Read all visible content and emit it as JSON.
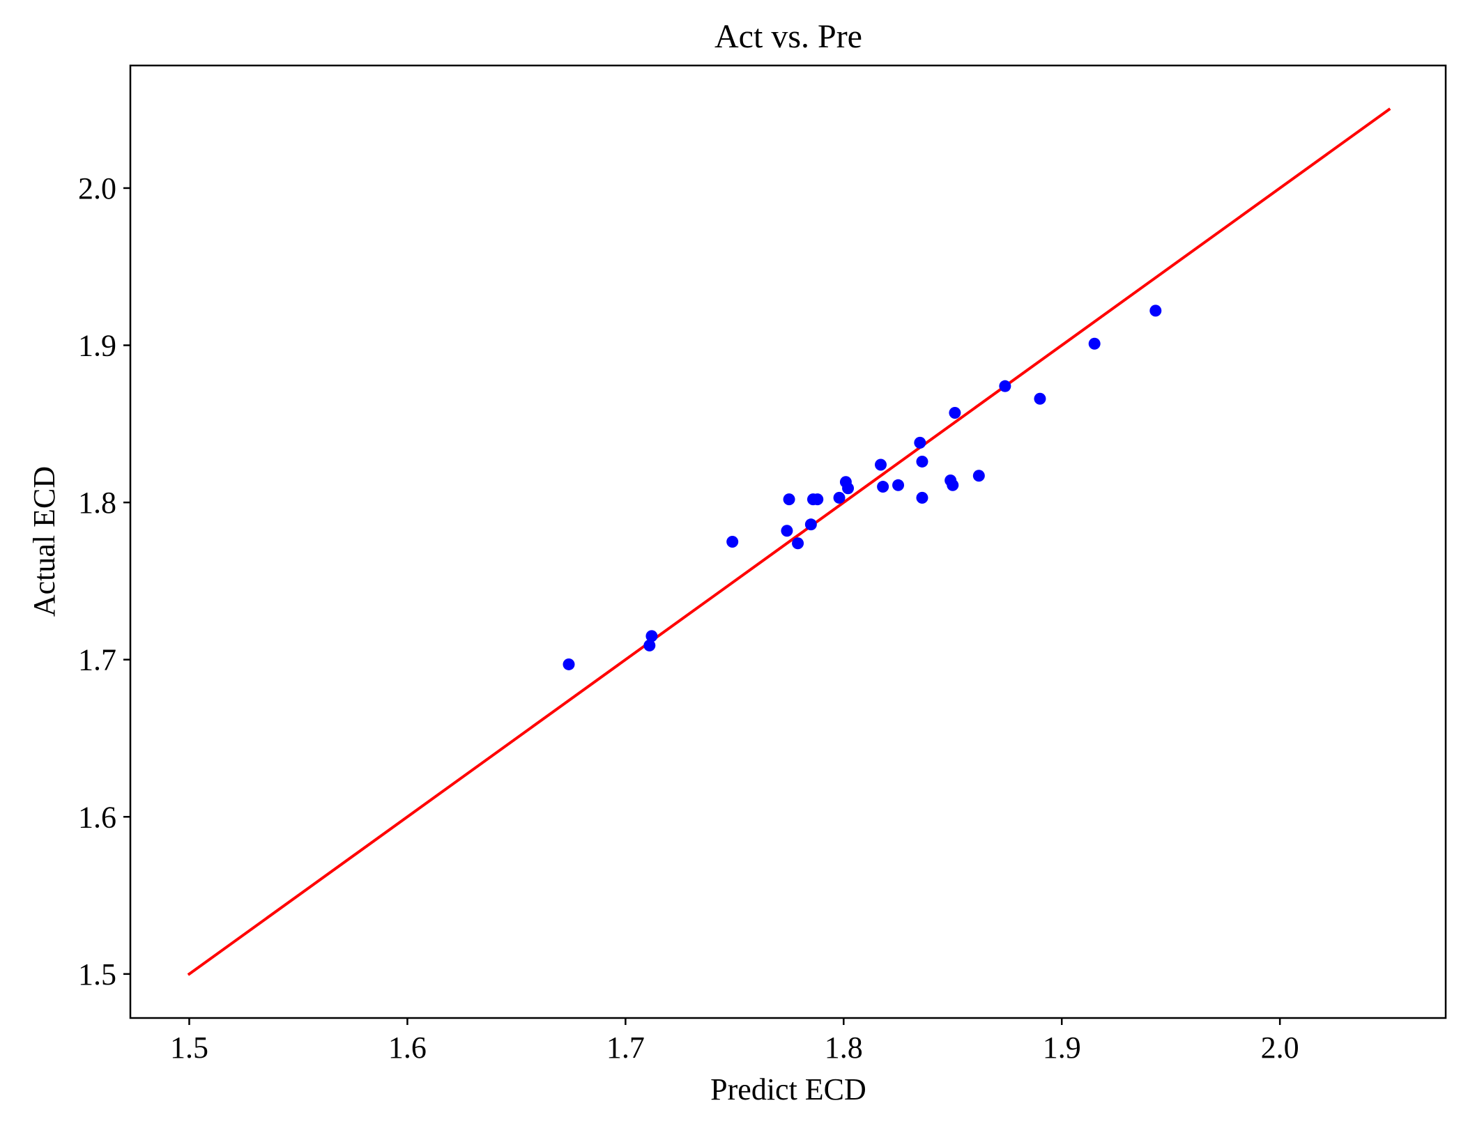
{
  "chart_data": {
    "type": "scatter",
    "title": "Act vs. Pre",
    "xlabel": "Predict ECD",
    "ylabel": "Actual ECD",
    "xlim": [
      1.473,
      2.076
    ],
    "ylim": [
      1.472,
      2.078
    ],
    "xticks": [
      1.5,
      1.6,
      1.7,
      1.8,
      1.9,
      2.0
    ],
    "xtick_labels": [
      "1.5",
      "1.6",
      "1.7",
      "1.8",
      "1.9",
      "2.0"
    ],
    "yticks": [
      1.5,
      1.6,
      1.7,
      1.8,
      1.9,
      2.0
    ],
    "ytick_labels": [
      "1.5",
      "1.6",
      "1.7",
      "1.8",
      "1.9",
      "2.0"
    ],
    "grid": false,
    "point_color": "#0000ff",
    "line_color": "#ff0000",
    "series": [
      {
        "type": "scatter",
        "x": [
          1.674,
          1.711,
          1.712,
          1.749,
          1.774,
          1.775,
          1.779,
          1.785,
          1.786,
          1.788,
          1.798,
          1.801,
          1.802,
          1.817,
          1.818,
          1.825,
          1.835,
          1.836,
          1.836,
          1.849,
          1.85,
          1.851,
          1.862,
          1.874,
          1.89,
          1.915,
          1.943
        ],
        "y": [
          1.697,
          1.709,
          1.715,
          1.775,
          1.782,
          1.802,
          1.774,
          1.786,
          1.802,
          1.802,
          1.803,
          1.813,
          1.809,
          1.824,
          1.81,
          1.811,
          1.838,
          1.826,
          1.803,
          1.814,
          1.811,
          1.857,
          1.817,
          1.874,
          1.866,
          1.901,
          1.922
        ]
      },
      {
        "type": "line",
        "x": [
          1.5,
          2.05
        ],
        "y": [
          1.5,
          2.05
        ]
      }
    ]
  }
}
